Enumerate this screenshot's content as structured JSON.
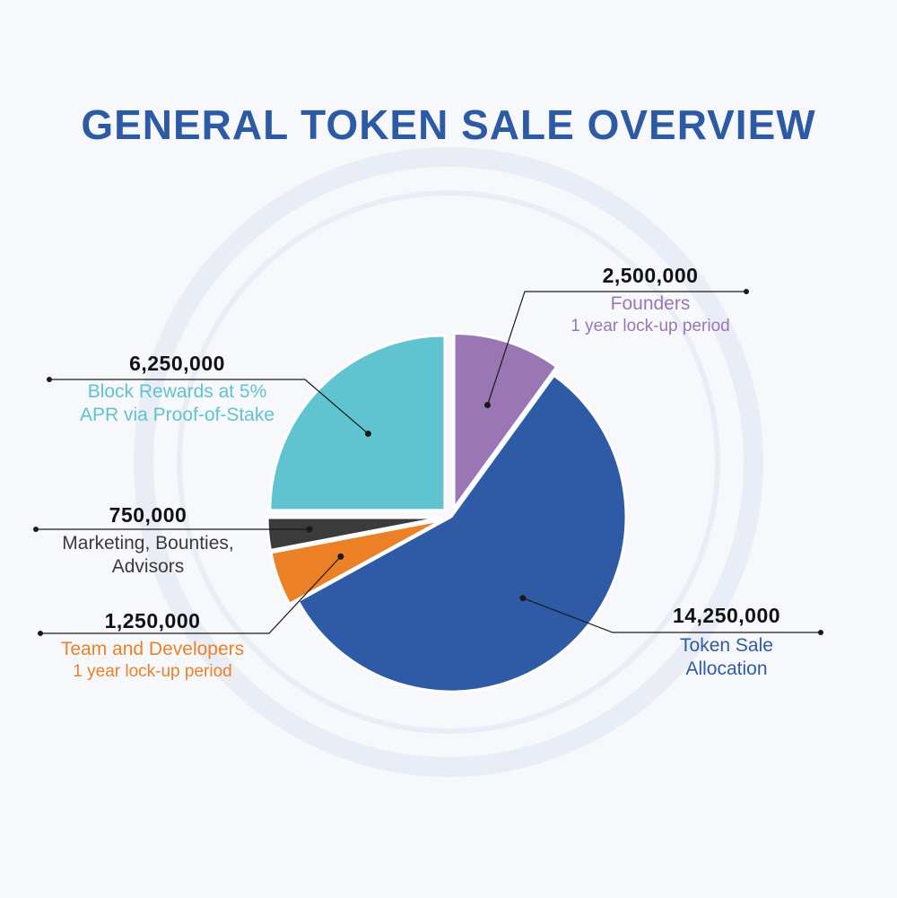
{
  "title": "GENERAL TOKEN SALE OVERVIEW",
  "colors": {
    "title": "#2d5aa5",
    "token_sale": "#2f5aa6",
    "founders": "#9a76b4",
    "block_rewards": "#60c3d0",
    "marketing": "#3b3b3b",
    "team": "#ec8026",
    "watermark": "#e9edf5"
  },
  "chart_data": {
    "type": "pie",
    "slices": [
      {
        "value": 2500000,
        "value_label": "2,500,000",
        "label": "Founders",
        "sublabel": "1 year lock-up period",
        "color": "#9a76b4",
        "exploded": true
      },
      {
        "value": 14250000,
        "value_label": "14,250,000",
        "label": "Token Sale\nAllocation",
        "sublabel": "",
        "color": "#2f5aa6",
        "exploded": false
      },
      {
        "value": 1250000,
        "value_label": "1,250,000",
        "label": "Team and Developers",
        "sublabel": "1 year lock-up period",
        "color": "#ec8026",
        "exploded": true
      },
      {
        "value": 750000,
        "value_label": "750,000",
        "label": "Marketing, Bounties,\nAdvisors",
        "sublabel": "",
        "color": "#3b3b3b",
        "exploded": true
      },
      {
        "value": 6250000,
        "value_label": "6,250,000",
        "label": "Block Rewards at 5%\nAPR via Proof-of-Stake",
        "sublabel": "",
        "color": "#60c3d0",
        "exploded": true
      }
    ]
  }
}
